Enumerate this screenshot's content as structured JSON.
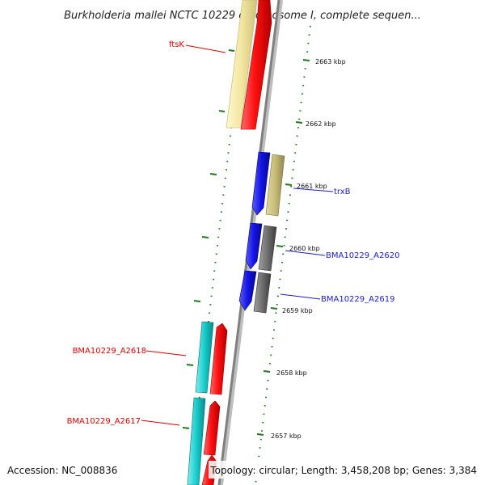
{
  "title": "Burkholderia mallei NCTC 10229 chromosome I, complete sequen...",
  "footer": {
    "accession": "Accession: NC_008836",
    "topology": "Topology: circular; Length: 3,458,208 bp; Genes: 3,384"
  },
  "coordinates": [
    "2663 kbp",
    "2662 kbp",
    "2661 kbp",
    "2660 kbp",
    "2659 kbp",
    "2658 kbp",
    "2657 kbp"
  ],
  "gene_labels": [
    {
      "text": "ftsK",
      "color": "#e00000"
    },
    {
      "text": "trxB",
      "color": "#1a1acc"
    },
    {
      "text": "BMA10229_A2620",
      "color": "#1a1acc"
    },
    {
      "text": "BMA10229_A2619",
      "color": "#1a1acc"
    },
    {
      "text": "BMA10229_A2618",
      "color": "#e00000"
    },
    {
      "text": "BMA10229_A2617",
      "color": "#e00000"
    }
  ],
  "colors": {
    "backbone": "#8a8a8a",
    "tick": "#1e7a1e",
    "red": "#ff1010",
    "blue": "#1414e6",
    "yellow": "#f2e6a0",
    "khaki": "#c8bb78",
    "gray": "#6e6e6e",
    "cyan": "#18cccc"
  }
}
